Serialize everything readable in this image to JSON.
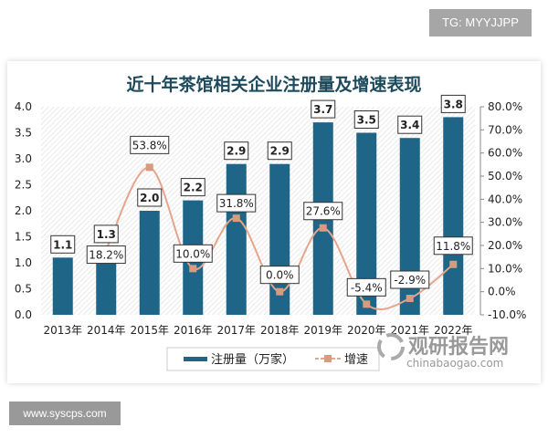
{
  "badges": {
    "tg": "TG: MYYJJPP",
    "site": "www.syscps.com"
  },
  "watermark": {
    "cn": "观研报告网",
    "en": "chinabaogao.com"
  },
  "colors": {
    "bar": "#1f6588",
    "line": "#e6a48b",
    "marker": "#d99a80"
  },
  "chart_data": {
    "type": "bar",
    "title": "近十年茶馆相关企业注册量及增速表现",
    "categories": [
      "2013年",
      "2014年",
      "2015年",
      "2016年",
      "2017年",
      "2018年",
      "2019年",
      "2020年",
      "2021年",
      "2022年"
    ],
    "series": [
      {
        "name": "注册量（万家）",
        "type": "bar",
        "axis": "left",
        "values": [
          1.1,
          1.3,
          2.0,
          2.2,
          2.9,
          2.9,
          3.7,
          3.5,
          3.4,
          3.8
        ],
        "labels": [
          "1.1",
          "1.3",
          "2.0",
          "2.2",
          "2.9",
          "2.9",
          "3.7",
          "3.5",
          "3.4",
          "3.8"
        ]
      },
      {
        "name": "增速",
        "type": "line",
        "axis": "right",
        "values": [
          null,
          18.2,
          53.8,
          10.0,
          31.8,
          0.0,
          27.6,
          -5.4,
          -2.9,
          11.8
        ],
        "labels": [
          "",
          "18.2%",
          "53.8%",
          "10.0%",
          "31.8%",
          "0.0%",
          "27.6%",
          "-5.4%",
          "-2.9%",
          "11.8%"
        ]
      }
    ],
    "y_left": {
      "range": [
        0,
        4.0
      ],
      "ticks": [
        "0.0",
        "0.5",
        "1.0",
        "1.5",
        "2.0",
        "2.5",
        "3.0",
        "3.5",
        "4.0"
      ]
    },
    "y_right": {
      "range": [
        -10,
        80
      ],
      "ticks": [
        "-10.0%",
        "0.0%",
        "10.0%",
        "20.0%",
        "30.0%",
        "40.0%",
        "50.0%",
        "60.0%",
        "70.0%",
        "80.0%"
      ]
    },
    "legend": "bottom",
    "grid": false
  }
}
